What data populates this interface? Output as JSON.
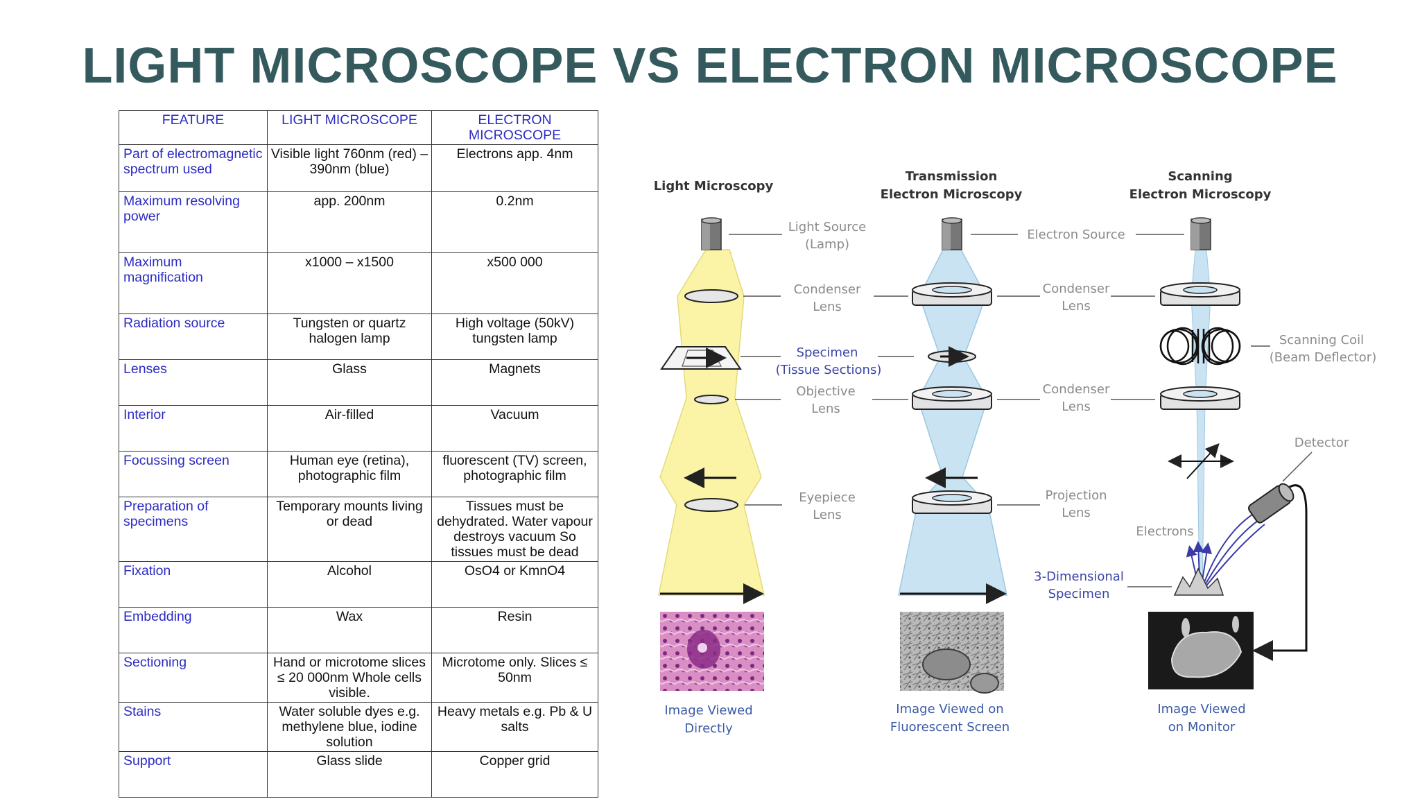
{
  "title": "LIGHT MICROSCOPE VS ELECTRON MICROSCOPE",
  "table": {
    "headers": [
      "FEATURE",
      "LIGHT MICROSCOPE",
      "ELECTRON MICROSCOPE"
    ],
    "rows": [
      {
        "feature": "Part of electromagnetic spectrum used",
        "light": "Visible light 760nm (red) – 390nm (blue)",
        "electron": "Electrons app. 4nm"
      },
      {
        "feature": "Maximum resolving power",
        "light": "app. 200nm",
        "electron": "0.2nm"
      },
      {
        "feature": "Maximum magnification",
        "light": "x1000 – x1500",
        "electron": "x500 000"
      },
      {
        "feature": "Radiation source",
        "light": "Tungsten or quartz halogen lamp",
        "electron": "High voltage (50kV) tungsten lamp"
      },
      {
        "feature": "Lenses",
        "light": "Glass",
        "electron": "Magnets"
      },
      {
        "feature": "Interior",
        "light": "Air-filled",
        "electron": "Vacuum"
      },
      {
        "feature": "Focussing screen",
        "light": "Human eye (retina), photographic film",
        "electron": "fluorescent (TV) screen, photographic film"
      },
      {
        "feature": "Preparation of specimens",
        "light": "Temporary mounts living or dead",
        "electron": "Tissues must be dehydrated. Water vapour destroys vacuum So tissues must be dead"
      },
      {
        "feature": "Fixation",
        "light": "Alcohol",
        "electron": "OsO4 or KmnO4"
      },
      {
        "feature": "Embedding",
        "light": "Wax",
        "electron": "Resin"
      },
      {
        "feature": "Sectioning",
        "light": "Hand or microtome slices ≤ 20 000nm Whole cells visible.",
        "electron": "Microtome only. Slices ≤ 50nm"
      },
      {
        "feature": "Stains",
        "light": "Water soluble dyes e.g. methylene blue, iodine solution",
        "electron": "Heavy metals e.g. Pb & U salts"
      },
      {
        "feature": "Support",
        "light": "Glass slide",
        "electron": "Copper grid"
      }
    ]
  },
  "diagram": {
    "columns": {
      "light": {
        "title": "Light Microscopy",
        "caption_1": "Image Viewed",
        "caption_2": "Directly"
      },
      "tem": {
        "title_1": "Transmission",
        "title_2": "Electron Microscopy",
        "caption_1": "Image Viewed on",
        "caption_2": "Fluorescent Screen"
      },
      "sem": {
        "title_1": "Scanning",
        "title_2": "Electron Microscopy",
        "caption_1": "Image Viewed",
        "caption_2": "on Monitor"
      }
    },
    "labels_mid": {
      "light_source_1": "Light Source",
      "light_source_2": "(Lamp)",
      "condenser_1": "Condenser",
      "condenser_2": "Lens",
      "specimen_1": "Specimen",
      "specimen_2": "(Tissue Sections)",
      "objective_1": "Objective",
      "objective_2": "Lens",
      "eyepiece_1": "Eyepiece",
      "eyepiece_2": "Lens"
    },
    "labels_right": {
      "electron_source": "Electron Source",
      "condenser_1": "Condenser",
      "condenser_2": "Lens",
      "condenser_b_1": "Condenser",
      "condenser_b_2": "Lens",
      "projection_1": "Projection",
      "projection_2": "Lens"
    },
    "labels_sem": {
      "scanning_coil_1": "Scanning Coil",
      "scanning_coil_2": "(Beam Deflector)",
      "detector": "Detector",
      "electrons": "Electrons",
      "specimen_3d_1": "3-Dimensional",
      "specimen_3d_2": "Specimen"
    },
    "colors": {
      "light_beam": "#fbf4a6",
      "electron_beam": "#c9e3f3",
      "caption": "#3a5aa6",
      "label_blue": "#3a45a8"
    }
  }
}
